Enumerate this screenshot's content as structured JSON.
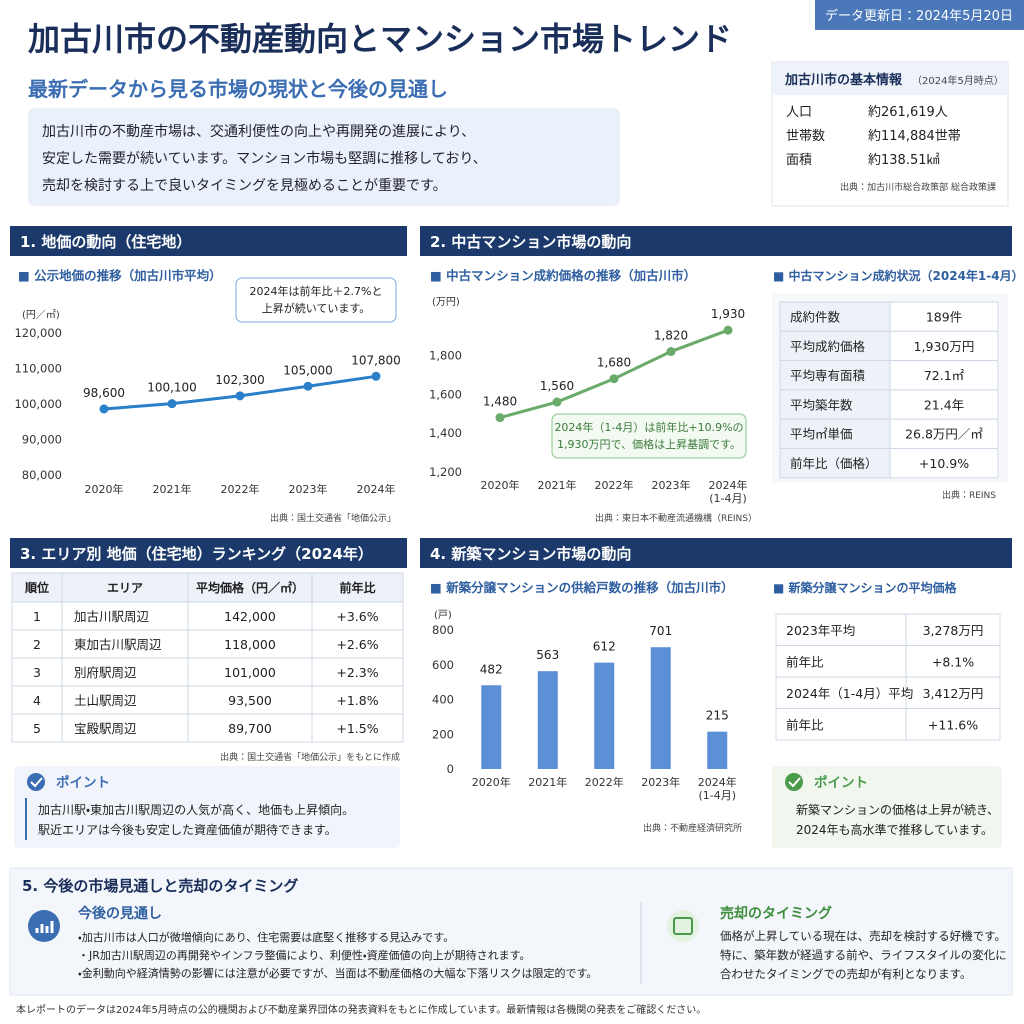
{
  "header": {
    "update_badge": "データ更新日：2024年5月20日",
    "title": "加古川市の不動産動向とマンション市場トレンド",
    "subtitle": "最新データから見る市場の現状と今後の見通し"
  },
  "intro": [
    "加古川市の不動産市場は、交通利便性の向上や再開発の進展により、",
    "安定した需要が続いています。マンション市場も堅調に推移しており、",
    "売却を検討する上で良いタイミングを見極めることが重要です。"
  ],
  "basic_info": {
    "title": "加古川市の基本情報",
    "note": "（2024年5月時点）",
    "rows": [
      [
        "人口",
        "約261,619人"
      ],
      [
        "世帯数",
        "約114,884世帯"
      ],
      [
        "面積",
        "約138.51㎢"
      ]
    ],
    "source": "出典：加古川市総合政策部 総合政策課"
  },
  "sections": [
    "1. 地価の動向（住宅地）",
    "2. 中古マンション市場の動向",
    "3. エリア別 地価（住宅地）ランキング（2024年）",
    "4. 新築マンション市場の動向"
  ],
  "chart_data": [
    {
      "type": "line",
      "title": "■ 公示地価の推移（加古川市平均）",
      "y_label": "(円／㎡)",
      "categories": [
        "2020年",
        "2021年",
        "2022年",
        "2023年",
        "2024年"
      ],
      "values": [
        98600,
        100100,
        102300,
        105000,
        107800
      ],
      "value_labels": [
        "98,600",
        "100,100",
        "102,300",
        "105,000",
        "107,800"
      ],
      "color": "#2a7fc9",
      "ylim": [
        80000,
        120000
      ],
      "yticks": [
        {
          "value": 80000,
          "label": "80,000"
        },
        {
          "value": 90000,
          "label": "90,000"
        },
        {
          "value": 100000,
          "label": "100,000"
        },
        {
          "value": 110000,
          "label": "110,000"
        },
        {
          "value": 120000,
          "label": "120,000"
        }
      ],
      "annotation": [
        "2024年は前年比＋2.7%と",
        "上昇が続いています。"
      ],
      "source": "出典：国土交通省「地価公示」"
    },
    {
      "type": "line",
      "title": "■ 中古マンション成約価格の推移（加古川市）",
      "y_label": "(万円)",
      "categories": [
        "2020年",
        "2021年",
        "2022年",
        "2023年",
        "2024年\n(1-4月)"
      ],
      "values": [
        1480,
        1560,
        1680,
        1820,
        1930
      ],
      "value_labels": [
        "1,480",
        "1,560",
        "1,680",
        "1,820",
        "1,930"
      ],
      "color": "#6aaa6a",
      "ylim": [
        1200,
        1900
      ],
      "yticks": [
        {
          "value": 1200,
          "label": "1,200"
        },
        {
          "value": 1400,
          "label": "1,400"
        },
        {
          "value": 1600,
          "label": "1,600"
        },
        {
          "value": 1800,
          "label": "1,800"
        }
      ],
      "annotation": [
        "2024年（1-4月）は前年比+10.9%の",
        "1,930万円で、価格は上昇基調です。"
      ],
      "source": "出典：東日本不動産流通機構（REINS）"
    },
    {
      "type": "bar",
      "title": "■ 新築分譲マンションの供給戸数の推移（加古川市）",
      "y_label": "(戸)",
      "categories": [
        "2020年",
        "2021年",
        "2022年",
        "2023年",
        "2024年\n(1-4月)"
      ],
      "values": [
        482,
        563,
        612,
        701,
        215
      ],
      "color": "#5b8fd6",
      "ylim": [
        0,
        800
      ],
      "yticks": [
        0,
        200,
        400,
        600,
        800
      ],
      "source": "出典：不動産経済研究所"
    }
  ],
  "resale_table": {
    "title": "■ 中古マンション成約状況（2024年1-4月）",
    "rows": [
      [
        "成約件数",
        "189件"
      ],
      [
        "平均成約価格",
        "1,930万円"
      ],
      [
        "平均専有面積",
        "72.1㎡"
      ],
      [
        "平均築年数",
        "21.4年"
      ],
      [
        "平均㎡単価",
        "26.8万円／㎡"
      ],
      [
        "前年比（価格）",
        "+10.9%"
      ]
    ],
    "source": "出典：REINS"
  },
  "ranking_table": {
    "header": [
      "順位",
      "エリア",
      "平均価格（円／㎡）",
      "前年比"
    ],
    "rows": [
      [
        "1",
        "加古川駅周辺",
        "142,000",
        "+3.6%"
      ],
      [
        "2",
        "東加古川駅周辺",
        "118,000",
        "+2.6%"
      ],
      [
        "3",
        "別府駅周辺",
        "101,000",
        "+2.3%"
      ],
      [
        "4",
        "土山駅周辺",
        "93,500",
        "+1.8%"
      ],
      [
        "5",
        "宝殿駅周辺",
        "89,700",
        "+1.5%"
      ]
    ],
    "source": "出典：国土交通省「地価公示」をもとに作成"
  },
  "point1": {
    "title": "ポイント",
    "lines": [
      "加古川駅・東加古川駅周辺の人気が高く、地価も上昇傾向。",
      "駅近エリアは今後も安定した資産価値が期待できます。"
    ]
  },
  "new_table": {
    "title": "■ 新築分譲マンションの平均価格",
    "rows": [
      [
        "2023年平均",
        "3,278万円"
      ],
      [
        "前年比",
        "+8.1%"
      ],
      [
        "2024年（1-4月）平均",
        "3,412万円"
      ],
      [
        "前年比",
        "+11.6%"
      ]
    ]
  },
  "point2": {
    "title": "ポイント",
    "lines": [
      "新築マンションの価格は上昇が続き、",
      "2024年も高水準で推移しています。"
    ]
  },
  "outlook": {
    "title": "5. 今後の市場見通しと売却のタイミング",
    "left": {
      "title": "今後の見通し",
      "lines": [
        "・加古川市は人口が微増傾向にあり、住宅需要は底堅く推移する見込みです。",
        "・JR加古川駅周辺の再開発やインフラ整備により、利便性・資産価値の向上が期待されます。",
        "・金利動向や経済情勢の影響には注意が必要ですが、当面は不動産価格の大幅な下落リスクは限定的です。"
      ]
    },
    "right": {
      "title": "売却のタイミング",
      "lines": [
        "価格が上昇している現在は、売却を検討する好機です。",
        "特に、築年数が経過する前や、ライフスタイルの変化に",
        "合わせたタイミングでの売却が有利となります。"
      ]
    }
  },
  "footer": "本レポートのデータは2024年5月時点の公的機関および不動産業界団体の発表資料をもとに作成しています。最新情報は各機関の発表をご確認ください。"
}
